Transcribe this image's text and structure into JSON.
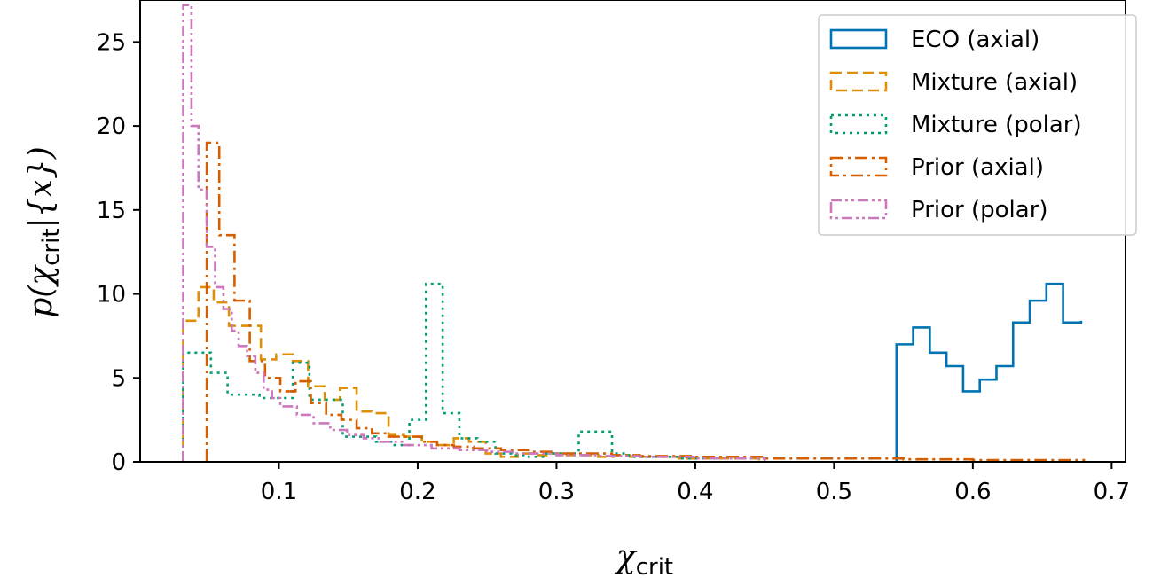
{
  "chart_data": {
    "type": "histogram",
    "title": "",
    "xlabel": {
      "main": "χ",
      "sub": "crit"
    },
    "ylabel": {
      "prefix": "p(χ",
      "sub": "crit",
      "suffix": "|{x})"
    },
    "xlim": [
      0.0,
      0.71
    ],
    "ylim": [
      0,
      27.5
    ],
    "x_ticks": [
      {
        "value": 0.1,
        "label": "0.1"
      },
      {
        "value": 0.2,
        "label": "0.2"
      },
      {
        "value": 0.3,
        "label": "0.3"
      },
      {
        "value": 0.4,
        "label": "0.4"
      },
      {
        "value": 0.5,
        "label": "0.5"
      },
      {
        "value": 0.6,
        "label": "0.6"
      },
      {
        "value": 0.7,
        "label": "0.7"
      }
    ],
    "y_ticks": [
      {
        "value": 0,
        "label": "0"
      },
      {
        "value": 5,
        "label": "5"
      },
      {
        "value": 10,
        "label": "10"
      },
      {
        "value": 15,
        "label": "15"
      },
      {
        "value": 20,
        "label": "20"
      },
      {
        "value": 25,
        "label": "25"
      }
    ],
    "grid": false,
    "legend_position": "top-right",
    "series": [
      {
        "name": "ECO (axial)",
        "color": "#0173b2",
        "dash": "solid",
        "edges": [
          0.545,
          0.557,
          0.569,
          0.581,
          0.593,
          0.605,
          0.617,
          0.629,
          0.641,
          0.653,
          0.665,
          0.678
        ],
        "values": [
          7.0,
          8.0,
          6.5,
          5.7,
          4.2,
          4.9,
          5.7,
          8.3,
          9.6,
          10.6,
          8.3,
          8.4
        ]
      },
      {
        "name": "Mixture (axial)",
        "color": "#de8f05",
        "dash": "dashed",
        "edges": [
          0.031,
          0.042,
          0.053,
          0.064,
          0.075,
          0.087,
          0.098,
          0.11,
          0.121,
          0.133,
          0.144,
          0.156,
          0.167,
          0.179,
          0.19,
          0.203,
          0.214,
          0.226,
          0.237,
          0.249,
          0.26,
          0.272,
          0.283,
          0.295,
          0.306,
          0.318,
          0.33,
          0.341,
          0.353,
          0.365,
          0.376,
          0.388,
          0.4,
          0.411,
          0.423,
          0.435,
          0.446
        ],
        "values": [
          8.4,
          10.4,
          9.5,
          8.1,
          8.1,
          6.1,
          6.4,
          6.0,
          4.5,
          3.7,
          4.4,
          3.0,
          2.9,
          1.6,
          1.5,
          1.2,
          1.0,
          1.4,
          1.2,
          0.5,
          0.3,
          0.5,
          0.4,
          0.5,
          0.4,
          0.4,
          0.3,
          0.4,
          0.3,
          0.3,
          0.3,
          0.2,
          0.2,
          0.2,
          0.2,
          0.2
        ]
      },
      {
        "name": "Mixture (polar)",
        "color": "#029e73",
        "dash": "dotted",
        "edges": [
          0.031,
          0.051,
          0.063,
          0.086,
          0.11,
          0.122,
          0.146,
          0.17,
          0.182,
          0.194,
          0.206,
          0.218,
          0.23,
          0.243,
          0.256,
          0.268,
          0.28,
          0.292,
          0.304,
          0.316,
          0.328,
          0.34,
          0.352,
          0.364,
          0.376,
          0.388,
          0.4,
          0.412
        ],
        "values": [
          6.5,
          5.3,
          4.0,
          3.8,
          5.9,
          3.7,
          1.5,
          1.2,
          1.0,
          2.5,
          10.6,
          2.9,
          1.4,
          1.2,
          0.5,
          0.4,
          0.3,
          0.5,
          0.5,
          1.8,
          1.8,
          0.5,
          0.3,
          0.3,
          0.3,
          0.2,
          0.2
        ]
      },
      {
        "name": "Prior (axial)",
        "color": "#d55e00",
        "dash": "dashdot",
        "edges": [
          0.048,
          0.057,
          0.068,
          0.079,
          0.09,
          0.101,
          0.112,
          0.123,
          0.134,
          0.145,
          0.156,
          0.167,
          0.179,
          0.19,
          0.203,
          0.214,
          0.226,
          0.24,
          0.26,
          0.28,
          0.3,
          0.32,
          0.34,
          0.36,
          0.4,
          0.45,
          0.5,
          0.55,
          0.6,
          0.65,
          0.68
        ],
        "values": [
          19.0,
          13.5,
          9.6,
          6.0,
          5.0,
          4.2,
          4.8,
          3.5,
          2.8,
          2.5,
          2.0,
          1.7,
          1.5,
          1.5,
          1.2,
          1.0,
          0.9,
          0.8,
          0.7,
          0.6,
          0.5,
          0.5,
          0.4,
          0.35,
          0.3,
          0.2,
          0.2,
          0.15,
          0.1,
          0.1
        ]
      },
      {
        "name": "Prior (polar)",
        "color": "#cc78bc",
        "dash": "dashdotdot",
        "edges": [
          0.031,
          0.037,
          0.042,
          0.048,
          0.054,
          0.06,
          0.066,
          0.071,
          0.077,
          0.083,
          0.089,
          0.095,
          0.101,
          0.113,
          0.125,
          0.137,
          0.149,
          0.161,
          0.173,
          0.19,
          0.21,
          0.23,
          0.25,
          0.27,
          0.3,
          0.33,
          0.36,
          0.4,
          0.45
        ],
        "values": [
          27.2,
          20.0,
          16.2,
          12.8,
          10.4,
          9.1,
          7.8,
          6.9,
          6.3,
          5.3,
          4.3,
          3.8,
          3.3,
          2.8,
          2.3,
          1.9,
          1.6,
          1.4,
          1.2,
          1.0,
          0.8,
          0.7,
          0.6,
          0.5,
          0.4,
          0.35,
          0.3,
          0.2
        ]
      }
    ]
  }
}
